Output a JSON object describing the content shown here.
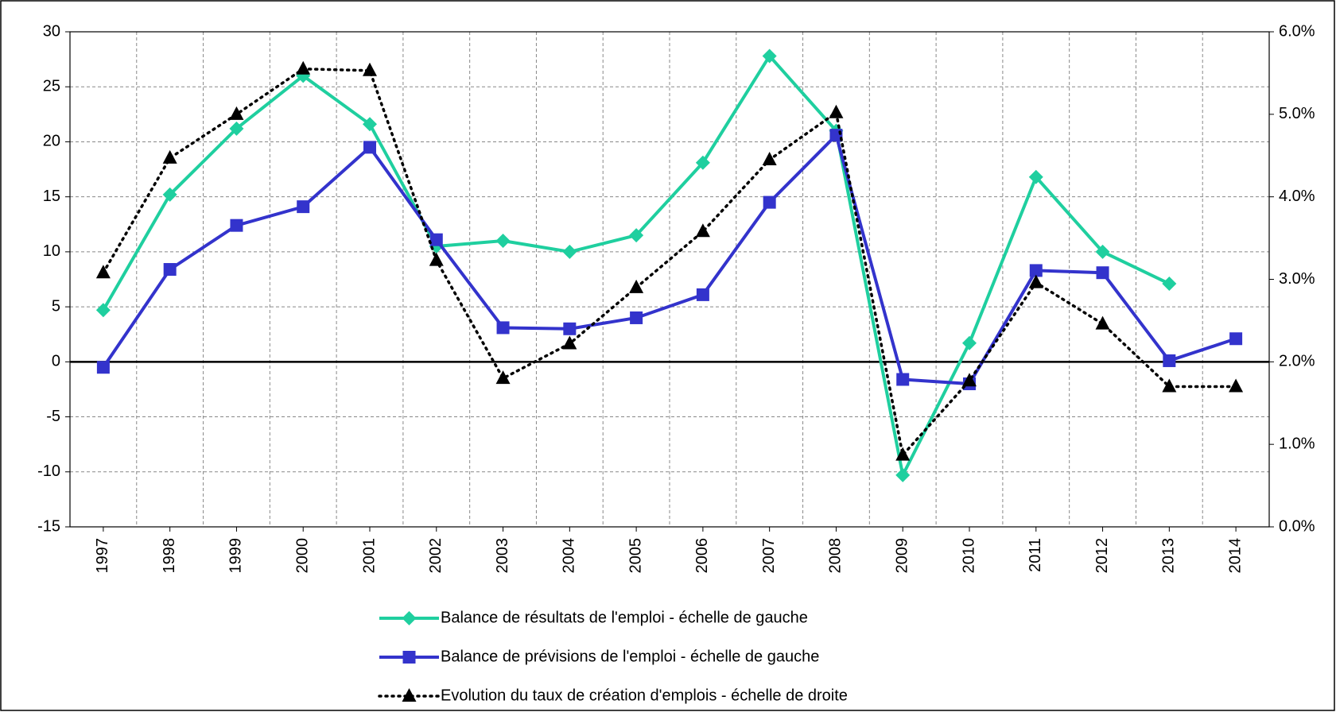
{
  "chart_data": {
    "type": "line",
    "categories": [
      "1997",
      "1998",
      "1999",
      "2000",
      "2001",
      "2002",
      "2003",
      "2004",
      "2005",
      "2006",
      "2007",
      "2008",
      "2009",
      "2010",
      "2011",
      "2012",
      "2013",
      "2014"
    ],
    "series": [
      {
        "name": "Balance de résultats de l'emploi - échelle de gauche",
        "color": "#1fcf9f",
        "marker": "diamond",
        "axis": "y",
        "values": [
          4.7,
          15.2,
          21.2,
          26,
          21.6,
          10.5,
          11,
          10,
          11.5,
          18.1,
          27.8,
          21,
          -10.3,
          1.7,
          16.8,
          10,
          7.1,
          null
        ]
      },
      {
        "name": "Balance de prévisions de l'emploi - échelle de gauche",
        "color": "#3333cc",
        "marker": "square",
        "axis": "y",
        "values": [
          -0.5,
          8.4,
          12.4,
          14.1,
          19.5,
          11.1,
          3.1,
          3.0,
          4.0,
          6.1,
          14.5,
          20.6,
          -1.6,
          -2.0,
          8.3,
          8.1,
          0.1,
          2.1
        ]
      },
      {
        "name": "Evolution du taux de création d'emplois - échelle de droite",
        "color": "#000000",
        "marker": "triangle",
        "dash": "dotted",
        "axis": "y2",
        "values": [
          3.08,
          4.47,
          5.0,
          5.55,
          5.53,
          3.23,
          1.8,
          2.22,
          2.9,
          3.58,
          4.45,
          5.02,
          0.87,
          1.77,
          2.96,
          2.46,
          1.7,
          1.7
        ]
      }
    ],
    "ylim": [
      -15,
      30
    ],
    "yticks": [
      -15,
      -10,
      -5,
      0,
      5,
      10,
      15,
      20,
      25,
      30
    ],
    "y2lim": [
      0,
      6
    ],
    "y2ticks": [
      {
        "value": 0,
        "label": "0.0%"
      },
      {
        "value": 1,
        "label": "1.0%"
      },
      {
        "value": 2,
        "label": "2.0%"
      },
      {
        "value": 3,
        "label": "3.0%"
      },
      {
        "value": 4,
        "label": "4.0%"
      },
      {
        "value": 5,
        "label": "5.0%"
      },
      {
        "value": 6,
        "label": "6.0%"
      }
    ],
    "grid": true,
    "legend": "bottom"
  }
}
